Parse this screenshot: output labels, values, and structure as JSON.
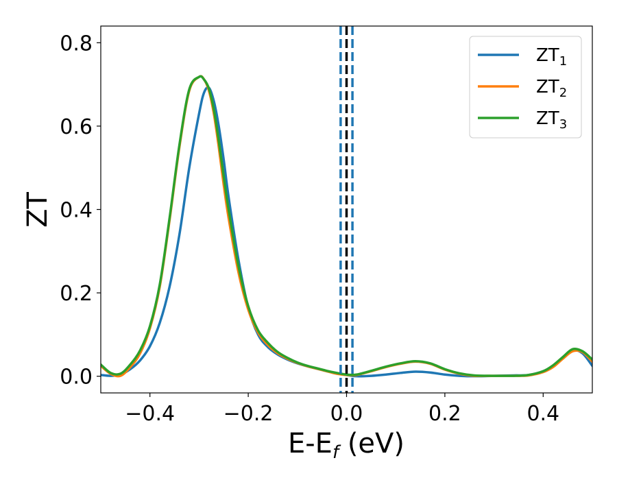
{
  "chart_data": {
    "type": "line",
    "title": "",
    "xlabel": {
      "base": "E-E",
      "subscript": "f",
      "suffix": " (eV)"
    },
    "ylabel": "ZT",
    "xlim": [
      -0.5,
      0.5
    ],
    "ylim": [
      -0.04,
      0.84
    ],
    "x_ticks": [
      -0.4,
      -0.2,
      0.0,
      0.2,
      0.4
    ],
    "x_tick_labels": [
      "−0.4",
      "−0.2",
      "0.0",
      "0.2",
      "0.4"
    ],
    "y_ticks": [
      0.0,
      0.2,
      0.4,
      0.6,
      0.8
    ],
    "y_tick_labels": [
      "0.0",
      "0.2",
      "0.4",
      "0.6",
      "0.8"
    ],
    "grid": false,
    "legend_position": "upper-right",
    "vlines": [
      {
        "x": -0.012,
        "color": "#1f77b4",
        "style": "dashed"
      },
      {
        "x": 0.0,
        "color": "#000000",
        "style": "dashed"
      },
      {
        "x": 0.012,
        "color": "#1f77b4",
        "style": "dashed"
      }
    ],
    "series": [
      {
        "name": "ZT",
        "name_sub": "1",
        "color": "#1f77b4",
        "x": [
          -0.5,
          -0.48,
          -0.46,
          -0.44,
          -0.42,
          -0.4,
          -0.38,
          -0.36,
          -0.34,
          -0.32,
          -0.3,
          -0.29,
          -0.28,
          -0.27,
          -0.26,
          -0.25,
          -0.24,
          -0.22,
          -0.2,
          -0.18,
          -0.16,
          -0.14,
          -0.12,
          -0.1,
          -0.08,
          -0.06,
          -0.04,
          -0.02,
          0.0,
          0.02,
          0.05,
          0.08,
          0.11,
          0.14,
          0.17,
          0.2,
          0.23,
          0.26,
          0.3,
          0.34,
          0.37,
          0.4,
          0.42,
          0.44,
          0.46,
          0.48,
          0.5
        ],
        "y": [
          0.003,
          0.001,
          0.004,
          0.017,
          0.038,
          0.072,
          0.128,
          0.215,
          0.34,
          0.5,
          0.63,
          0.68,
          0.692,
          0.66,
          0.6,
          0.52,
          0.43,
          0.28,
          0.165,
          0.1,
          0.07,
          0.052,
          0.04,
          0.031,
          0.024,
          0.018,
          0.012,
          0.007,
          0.003,
          0.0,
          0.001,
          0.004,
          0.008,
          0.011,
          0.009,
          0.004,
          0.001,
          0.0,
          0.001,
          0.002,
          0.003,
          0.012,
          0.025,
          0.045,
          0.062,
          0.055,
          0.025
        ]
      },
      {
        "name": "ZT",
        "name_sub": "2",
        "color": "#ff7f0e",
        "x": [
          -0.5,
          -0.48,
          -0.46,
          -0.44,
          -0.42,
          -0.4,
          -0.38,
          -0.36,
          -0.34,
          -0.32,
          -0.3,
          -0.29,
          -0.28,
          -0.27,
          -0.26,
          -0.25,
          -0.24,
          -0.22,
          -0.2,
          -0.18,
          -0.16,
          -0.14,
          -0.12,
          -0.1,
          -0.08,
          -0.06,
          -0.04,
          -0.02,
          0.0,
          0.02,
          0.05,
          0.08,
          0.11,
          0.14,
          0.17,
          0.2,
          0.23,
          0.26,
          0.3,
          0.34,
          0.37,
          0.4,
          0.42,
          0.44,
          0.46,
          0.48,
          0.5
        ],
        "y": [
          0.025,
          0.006,
          0.001,
          0.022,
          0.055,
          0.115,
          0.215,
          0.375,
          0.55,
          0.685,
          0.718,
          0.712,
          0.685,
          0.63,
          0.55,
          0.46,
          0.38,
          0.25,
          0.16,
          0.105,
          0.075,
          0.055,
          0.042,
          0.032,
          0.024,
          0.018,
          0.012,
          0.006,
          0.003,
          0.003,
          0.012,
          0.022,
          0.03,
          0.035,
          0.03,
          0.016,
          0.006,
          0.001,
          0.001,
          0.001,
          0.002,
          0.01,
          0.022,
          0.042,
          0.06,
          0.058,
          0.035
        ]
      },
      {
        "name": "ZT",
        "name_sub": "3",
        "color": "#2ca02c",
        "x": [
          -0.5,
          -0.48,
          -0.46,
          -0.44,
          -0.42,
          -0.4,
          -0.38,
          -0.36,
          -0.34,
          -0.32,
          -0.3,
          -0.29,
          -0.28,
          -0.27,
          -0.26,
          -0.25,
          -0.24,
          -0.22,
          -0.2,
          -0.18,
          -0.16,
          -0.14,
          -0.12,
          -0.1,
          -0.08,
          -0.06,
          -0.04,
          -0.02,
          0.0,
          0.02,
          0.05,
          0.08,
          0.11,
          0.14,
          0.17,
          0.2,
          0.23,
          0.26,
          0.3,
          0.34,
          0.37,
          0.4,
          0.42,
          0.44,
          0.46,
          0.48,
          0.5
        ],
        "y": [
          0.028,
          0.008,
          0.006,
          0.028,
          0.062,
          0.12,
          0.22,
          0.38,
          0.555,
          0.688,
          0.718,
          0.712,
          0.69,
          0.64,
          0.565,
          0.48,
          0.4,
          0.265,
          0.168,
          0.11,
          0.08,
          0.058,
          0.044,
          0.033,
          0.025,
          0.019,
          0.013,
          0.008,
          0.004,
          0.004,
          0.013,
          0.023,
          0.031,
          0.036,
          0.031,
          0.017,
          0.007,
          0.002,
          0.001,
          0.001,
          0.003,
          0.012,
          0.026,
          0.046,
          0.065,
          0.06,
          0.04
        ]
      }
    ]
  }
}
